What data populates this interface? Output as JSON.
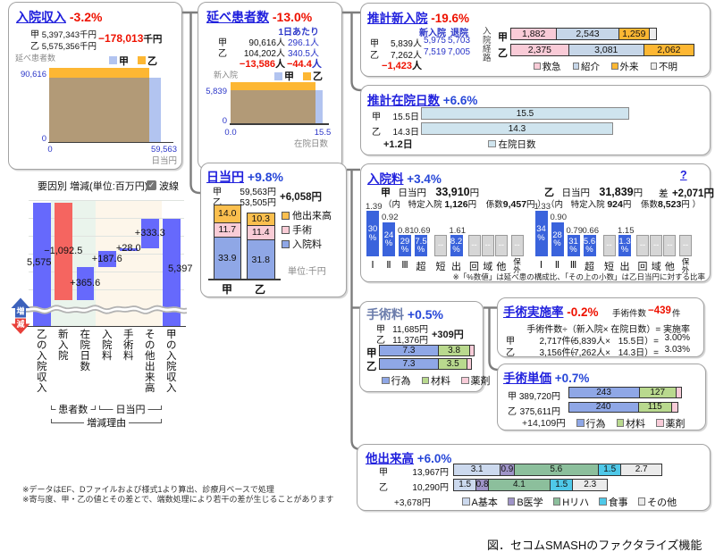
{
  "figure_caption": "図．セコムSMASHのファクタライズ機能",
  "footnotes": [
    "※データはEF、Dファイルおよび様式1より算出、診療月ベースで処理",
    "※寄与度、甲・乙の値とその差とで、端数処理により若干の差が生じることがあります"
  ],
  "colors": {
    "link_blue": "#2020dd",
    "pct_blue": "#2747d8",
    "neg_red": "#ee1100",
    "kou_light_blue": "#b2c4f0",
    "otsu_orange": "#fdb733",
    "overlap_brown": "#b29a77",
    "waterfall_blue": "#6669fc",
    "waterfall_red": "#f56560",
    "band_green": "#eaf4ec",
    "band_cream": "#fdf6ea",
    "royal_blue": "#3a63dc",
    "bar_gray": "#d6d6d6",
    "pale_blue": "#cfe4ee",
    "pink": "#f9cbd7",
    "ref_blue": "#c6d6e8",
    "unknown_gray": "#ececec",
    "koui_blue": "#8fa7e6",
    "zairyo_green": "#b9d98e",
    "yakuzai_pink": "#f8ccd8",
    "a_basic": "#ccd9ee",
    "b_igaku": "#9f94c8",
    "h_riha": "#8cbf9c",
    "shokuji": "#4fc8e8",
    "sonota": "#ebebeb"
  },
  "panels": {
    "admission_revenue": {
      "title": "入院収入",
      "pct": "-3.2%",
      "rows": [
        {
          "label": "甲",
          "value": "5,397,343千円"
        },
        {
          "label": "乙",
          "value": "5,575,356千円"
        }
      ],
      "delta_value": "−178,013",
      "delta_unit": "千円",
      "ylabel": "延べ患者数",
      "xlabel": "日当円",
      "legend": [
        "甲",
        "乙"
      ],
      "ytick_top": "90,616",
      "ytick_zero": "0",
      "xtick_zero": "0",
      "xtick_right": "59,563"
    },
    "total_patients": {
      "title": "延べ患者数",
      "pct": "-13.0%",
      "col2_header": "1日あたり",
      "rows": [
        {
          "label": "甲",
          "v1": "90,616人",
          "v2": "296.1人"
        },
        {
          "label": "乙",
          "v1": "104,202人",
          "v2": "340.5人"
        }
      ],
      "delta1": "−13,586",
      "delta1_unit": "人",
      "delta2": "−44.4",
      "delta2_unit": "人",
      "ylabel": "新入院",
      "xlabel": "在院日数",
      "legend": [
        "甲",
        "乙"
      ],
      "ytick_top": "5,839",
      "ytick_zero": "0",
      "xtick_zero": "0.0",
      "xtick_right": "15.5"
    },
    "est_new_admissions": {
      "title": "推計新入院",
      "pct": "-19.6%",
      "col_headers": [
        "新入院",
        "退院"
      ],
      "rows": [
        {
          "label": "甲",
          "patients": "5,839人",
          "adm": "5,975",
          "dis": "5,703"
        },
        {
          "label": "乙",
          "patients": "7,262人",
          "adm": "7,519",
          "dis": "7,005"
        }
      ],
      "delta": "−1,423",
      "delta_unit": "人",
      "side_label": "入院経路",
      "bar_rows": [
        {
          "label": "甲",
          "segments": [
            1882,
            2543,
            1259,
            291
          ],
          "seg_labels": [
            "1,882",
            "2,543",
            "1,259",
            ""
          ]
        },
        {
          "label": "乙",
          "segments": [
            2375,
            3081,
            2062,
            1
          ],
          "seg_labels": [
            "2,375",
            "3,081",
            "2,062",
            ""
          ]
        }
      ],
      "legend": [
        "救急",
        "紹介",
        "外来",
        "不明"
      ]
    },
    "est_los": {
      "title": "推計在院日数",
      "pct": "+6.6%",
      "rows": [
        {
          "label": "甲",
          "value": "15.5日",
          "bar": 15.5,
          "bar_label": "15.5"
        },
        {
          "label": "乙",
          "value": "14.3日",
          "bar": 14.3,
          "bar_label": "14.3"
        }
      ],
      "delta": "+1.2日",
      "legend": [
        "在院日数"
      ]
    },
    "waterfall": {
      "header": "要因別 増減(単位:百万円)",
      "checkbox_label": "波線",
      "checkbox_checked": true,
      "up_label": "増",
      "down_label": "減",
      "bars": [
        {
          "label": "乙の入院収入",
          "display": "5,575",
          "value": 5575,
          "kind": "total"
        },
        {
          "label": "新入院",
          "display": "−1,092.5",
          "value": -1092.5,
          "kind": "delta"
        },
        {
          "label": "在院日数",
          "display": "+365.6",
          "value": 365.6,
          "kind": "delta"
        },
        {
          "label": "入院料",
          "display": "+187.6",
          "value": 187.6,
          "kind": "delta"
        },
        {
          "label": "手術料",
          "display": "+28.0",
          "value": 28.0,
          "kind": "delta"
        },
        {
          "label": "その他出来高",
          "display": "+333.3",
          "value": 333.3,
          "kind": "delta"
        },
        {
          "label": "甲の入院収入",
          "display": "5,397",
          "value": 5397,
          "kind": "total"
        }
      ],
      "group_brackets": [
        {
          "label": "患者数",
          "from": 1,
          "to": 2
        },
        {
          "label": "日当円",
          "from": 3,
          "to": 5
        },
        {
          "label": "増減理由",
          "from": 1,
          "to": 5
        }
      ]
    },
    "per_diem": {
      "title": "日当円",
      "pct": "+9.8%",
      "rows": [
        {
          "label": "甲",
          "value": "59,563円"
        },
        {
          "label": "乙",
          "value": "53,505円"
        }
      ],
      "delta": "+6,058円",
      "unit_note": "単位:千円",
      "xlabels": [
        "甲",
        "乙"
      ],
      "legend": [
        "他出来高",
        "手術",
        "入院料"
      ],
      "stacks": {
        "kou": {
          "values": [
            33.9,
            11.7,
            14.0
          ],
          "labels": [
            "33.9",
            "11.7",
            "14.0"
          ]
        },
        "otsu": {
          "values": [
            31.8,
            11.4,
            10.3
          ],
          "labels": [
            "31.8",
            "11.4",
            "10.3"
          ]
        }
      }
    },
    "admission_fee": {
      "title": "入院料",
      "pct": "+3.4%",
      "help": "?",
      "kou": {
        "label": "甲",
        "per_diem_label": "日当円",
        "value": "33,910",
        "unit": "円",
        "sub_open": "（内",
        "tokutei_label": "特定入院",
        "tokutei": "1,126",
        "tokutei_unit": "円",
        "keisu_label": "係数",
        "keisu": "9,457",
        "keisu_unit": "円",
        "sub_close": "）"
      },
      "otsu": {
        "label": "乙",
        "per_diem_label": "日当円",
        "value": "31,839",
        "unit": "円",
        "sub_open": "（内",
        "tokutei_label": "特定入院",
        "tokutei": "924",
        "tokutei_unit": "円",
        "keisu_label": "係数",
        "keisu": "8,523",
        "keisu_unit": "円",
        "sub_close": "）"
      },
      "diff_label": "差",
      "diff": "+2,071円",
      "categories": [
        "Ⅰ",
        "Ⅱ",
        "Ⅲ",
        "超",
        "短",
        "出",
        "回",
        "域",
        "他",
        "保外"
      ],
      "kou_ratios": [
        "1.39",
        "0.92",
        "0.81",
        "0.69",
        null,
        "1.61",
        null,
        null,
        null,
        null
      ],
      "kou_pcts": [
        "30",
        "24",
        "29",
        "7.5",
        null,
        "8.2",
        null,
        null,
        null,
        null
      ],
      "otsu_ratios": [
        "1.33",
        "0.90",
        "0.79",
        "0.66",
        null,
        "1.15",
        null,
        null,
        null,
        null
      ],
      "otsu_pcts": [
        "34",
        "28",
        "31",
        "5.6",
        null,
        "1.3",
        null,
        null,
        null,
        null
      ],
      "note": "※「%数値」は延べ患の構成比、「その上の小数」は乙日当円に対する比率"
    },
    "surgery_fee": {
      "title": "手術料",
      "pct": "+0.5%",
      "rows": [
        {
          "label": "甲",
          "value": "11,685円"
        },
        {
          "label": "乙",
          "value": "11,376円"
        }
      ],
      "delta": "+309円",
      "bar_rows": [
        {
          "label": "甲",
          "segments": [
            7.3,
            3.8,
            0.585
          ],
          "seg_labels": [
            "7.3",
            "3.8",
            ""
          ]
        },
        {
          "label": "乙",
          "segments": [
            7.3,
            3.5,
            0.576
          ],
          "seg_labels": [
            "7.3",
            "3.5",
            ""
          ]
        }
      ],
      "legend": [
        "行為",
        "材料",
        "薬剤"
      ]
    },
    "surgery_rate": {
      "title": "手術実施率",
      "pct": "-0.2%",
      "count_label": "手術件数",
      "count_delta": "−439",
      "count_unit": "件",
      "formula": "手術件数÷（新入院× 在院日数）= 実施率",
      "rows": [
        {
          "label": "甲",
          "c1": "2,717件÷",
          "c2": "（5,839人×",
          "c3": "15.5日）=",
          "c4": "3.00%"
        },
        {
          "label": "乙",
          "c1": "3,156件÷",
          "c2": "（7,262人×",
          "c3": "14.3日）=",
          "c4": "3.03%"
        }
      ]
    },
    "surgery_price": {
      "title": "手術単価",
      "pct": "+0.7%",
      "rows": [
        {
          "label": "甲",
          "value": "389,720円",
          "segments": [
            243,
            127,
            19.7
          ],
          "seg_labels": [
            "243",
            "127",
            ""
          ]
        },
        {
          "label": "乙",
          "value": "375,611円",
          "segments": [
            240,
            115,
            20.6
          ],
          "seg_labels": [
            "240",
            "115",
            ""
          ]
        }
      ],
      "delta": "+14,109円",
      "legend": [
        "行為",
        "材料",
        "薬剤"
      ]
    },
    "other_fees": {
      "title": "他出来高",
      "pct": "+6.0%",
      "rows": [
        {
          "label": "甲",
          "value": "13,967円",
          "segments": [
            3.1,
            0.9,
            5.6,
            1.5,
            2.7
          ],
          "seg_labels": [
            "3.1",
            "0.9",
            "5.6",
            "1.5",
            "2.7"
          ]
        },
        {
          "label": "乙",
          "value": "10,290円",
          "segments": [
            1.5,
            0.8,
            4.1,
            1.5,
            2.3
          ],
          "seg_labels": [
            "1.5",
            "0.8",
            "4.1",
            "1.5",
            "2.3"
          ]
        }
      ],
      "delta": "+3,678円",
      "legend": [
        "A基本",
        "B医学",
        "Hリハ",
        "食事",
        "その他"
      ]
    }
  },
  "chart_data": [
    {
      "type": "area",
      "title": "入院収入",
      "xlabel": "日当円",
      "ylabel": "延べ患者数",
      "series": [
        {
          "name": "甲",
          "x": 59563,
          "y": 90616
        },
        {
          "name": "乙",
          "x": 53505,
          "y": 104202
        }
      ],
      "xlim": [
        0,
        59563
      ],
      "ylim": [
        0,
        104202
      ]
    },
    {
      "type": "area",
      "title": "延べ患者数",
      "xlabel": "在院日数",
      "ylabel": "新入院",
      "series": [
        {
          "name": "甲",
          "x": 15.5,
          "y": 5839
        },
        {
          "name": "乙",
          "x": 14.3,
          "y": 7262
        }
      ],
      "xlim": [
        0,
        15.5
      ],
      "ylim": [
        0,
        7262
      ]
    },
    {
      "type": "bar",
      "title": "推計新入院(入院経路)",
      "categories": [
        "救急",
        "紹介",
        "外来",
        "不明"
      ],
      "series": [
        {
          "name": "甲",
          "values": [
            1882,
            2543,
            1259,
            291
          ]
        },
        {
          "name": "乙",
          "values": [
            2375,
            3081,
            2062,
            1
          ]
        }
      ],
      "orientation": "horizontal",
      "stacked": true
    },
    {
      "type": "bar",
      "title": "推計在院日数",
      "categories": [
        "甲",
        "乙"
      ],
      "values": [
        15.5,
        14.3
      ],
      "orientation": "horizontal",
      "legend": [
        "在院日数"
      ]
    },
    {
      "type": "waterfall",
      "title": "要因別 増減(単位:百万円)",
      "categories": [
        "乙の入院収入",
        "新入院",
        "在院日数",
        "入院料",
        "手術料",
        "その他出来高",
        "甲の入院収入"
      ],
      "values": [
        5575,
        -1092.5,
        365.6,
        187.6,
        28.0,
        333.3,
        5397
      ],
      "gridlines": [
        5600,
        5400,
        5200,
        5000,
        4800,
        4600
      ],
      "axis_break": true
    },
    {
      "type": "bar",
      "title": "日当円(単位:千円)",
      "categories": [
        "甲",
        "乙"
      ],
      "stacked": true,
      "series": [
        {
          "name": "入院料",
          "values": [
            33.9,
            31.8
          ]
        },
        {
          "name": "手術",
          "values": [
            11.7,
            11.4
          ]
        },
        {
          "name": "他出来高",
          "values": [
            14.0,
            10.3
          ]
        }
      ]
    },
    {
      "type": "bar",
      "title": "入院料 構成",
      "categories": [
        "Ⅰ",
        "Ⅱ",
        "Ⅲ",
        "超",
        "短",
        "出",
        "回",
        "域",
        "他",
        "保外"
      ],
      "series": [
        {
          "name": "甲 比率",
          "values": [
            1.39,
            0.92,
            0.81,
            0.69,
            null,
            1.61,
            null,
            null,
            null,
            null
          ]
        },
        {
          "name": "甲 構成比%",
          "values": [
            30,
            24,
            29,
            7.5,
            null,
            8.2,
            null,
            null,
            null,
            null
          ]
        },
        {
          "name": "乙 比率",
          "values": [
            1.33,
            0.9,
            0.79,
            0.66,
            null,
            1.15,
            null,
            null,
            null,
            null
          ]
        },
        {
          "name": "乙 構成比%",
          "values": [
            34,
            28,
            31,
            5.6,
            null,
            1.3,
            null,
            null,
            null,
            null
          ]
        }
      ]
    },
    {
      "type": "bar",
      "title": "手術料(千円)",
      "categories": [
        "甲",
        "乙"
      ],
      "stacked": true,
      "orientation": "horizontal",
      "series": [
        {
          "name": "行為",
          "values": [
            7.3,
            7.3
          ]
        },
        {
          "name": "材料",
          "values": [
            3.8,
            3.5
          ]
        },
        {
          "name": "薬剤",
          "values": [
            0.585,
            0.576
          ]
        }
      ]
    },
    {
      "type": "bar",
      "title": "手術単価(千円)",
      "categories": [
        "甲",
        "乙"
      ],
      "stacked": true,
      "orientation": "horizontal",
      "series": [
        {
          "name": "行為",
          "values": [
            243,
            240
          ]
        },
        {
          "name": "材料",
          "values": [
            127,
            115
          ]
        },
        {
          "name": "薬剤",
          "values": [
            19.7,
            20.6
          ]
        }
      ]
    },
    {
      "type": "bar",
      "title": "他出来高(千円)",
      "categories": [
        "甲",
        "乙"
      ],
      "stacked": true,
      "orientation": "horizontal",
      "series": [
        {
          "name": "A基本",
          "values": [
            3.1,
            1.5
          ]
        },
        {
          "name": "B医学",
          "values": [
            0.9,
            0.8
          ]
        },
        {
          "name": "Hリハ",
          "values": [
            5.6,
            4.1
          ]
        },
        {
          "name": "食事",
          "values": [
            1.5,
            1.5
          ]
        },
        {
          "name": "その他",
          "values": [
            2.7,
            2.3
          ]
        }
      ]
    }
  ]
}
